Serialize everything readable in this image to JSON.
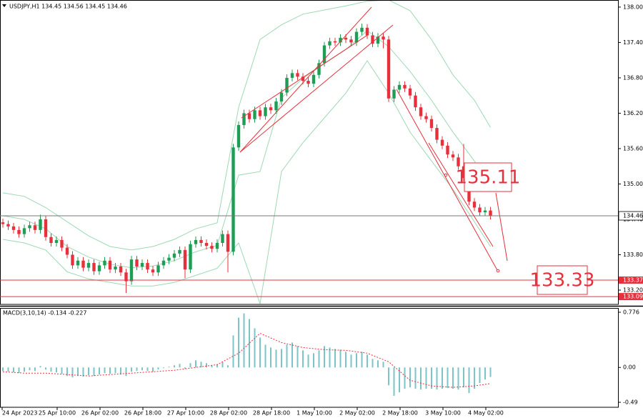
{
  "chart_data": {
    "type": "candlestick",
    "title": "USDJPY,H1 134.45 134.56 134.45 134.46",
    "open": [
      134.35,
      134.32,
      134.28,
      134.22,
      134.15,
      134.25,
      134.3,
      134.22,
      134.4,
      134.1,
      134.0,
      134.05,
      133.92,
      133.8,
      133.62,
      133.7,
      133.58,
      133.66,
      133.52,
      133.62,
      133.7,
      133.55,
      133.6,
      133.5,
      133.35,
      133.72,
      133.6,
      133.66,
      133.55,
      133.5,
      133.62,
      133.7,
      133.75,
      133.82,
      133.88,
      133.55,
      133.98,
      134.05,
      134.0,
      133.95,
      133.9,
      134.0,
      134.15,
      133.85,
      135.62,
      136.0,
      136.2,
      136.1,
      136.25,
      136.15,
      136.3,
      136.25,
      136.4,
      136.55,
      136.8,
      136.88,
      136.82,
      136.75,
      136.7,
      136.85,
      137.05,
      137.35,
      137.42,
      137.4,
      137.48,
      137.45,
      137.4,
      137.58,
      137.65,
      137.52,
      137.38,
      137.5,
      137.45,
      136.45,
      136.6,
      136.68,
      136.62,
      136.5,
      136.3,
      136.15,
      136.1,
      135.95,
      135.75,
      135.65,
      135.5,
      135.45,
      135.3,
      135.1,
      134.7,
      134.6,
      134.52,
      134.55
    ],
    "high": [
      134.41,
      134.38,
      134.34,
      134.28,
      134.31,
      134.36,
      134.36,
      134.48,
      134.46,
      134.16,
      134.11,
      134.11,
      133.98,
      133.86,
      133.76,
      133.76,
      133.72,
      133.72,
      133.68,
      133.76,
      133.76,
      133.66,
      133.66,
      133.56,
      133.78,
      133.78,
      133.72,
      133.72,
      133.61,
      133.68,
      133.76,
      133.81,
      133.88,
      133.94,
      133.94,
      134.04,
      134.11,
      134.11,
      134.06,
      134.01,
      134.06,
      134.21,
      134.21,
      135.68,
      136.06,
      136.26,
      136.26,
      136.31,
      136.31,
      136.36,
      136.36,
      136.46,
      136.61,
      136.86,
      136.94,
      136.94,
      136.88,
      136.81,
      136.91,
      137.11,
      137.41,
      137.48,
      137.48,
      137.54,
      137.54,
      137.51,
      137.64,
      137.72,
      137.71,
      137.58,
      137.56,
      137.56,
      137.51,
      136.66,
      136.74,
      136.74,
      136.68,
      136.56,
      136.36,
      136.21,
      136.16,
      136.01,
      135.81,
      135.71,
      135.56,
      135.51,
      135.68,
      135.16,
      134.76,
      134.66,
      134.61,
      134.61
    ],
    "low": [
      134.26,
      134.22,
      134.16,
      134.09,
      134.09,
      134.19,
      134.16,
      134.16,
      134.04,
      133.94,
      133.94,
      133.86,
      133.74,
      133.56,
      133.56,
      133.52,
      133.52,
      133.46,
      133.46,
      133.56,
      133.49,
      133.49,
      133.44,
      133.15,
      133.29,
      133.54,
      133.54,
      133.49,
      133.44,
      133.44,
      133.56,
      133.64,
      133.69,
      133.76,
      133.4,
      133.49,
      133.92,
      133.94,
      133.89,
      133.84,
      133.84,
      133.94,
      133.5,
      133.79,
      135.56,
      135.94,
      136.04,
      136.04,
      136.09,
      136.09,
      136.19,
      136.19,
      136.34,
      136.49,
      136.74,
      136.76,
      136.69,
      136.64,
      136.64,
      136.79,
      136.99,
      137.29,
      137.34,
      137.34,
      137.39,
      137.34,
      137.34,
      137.52,
      137.46,
      137.32,
      137.32,
      137.3,
      136.39,
      136.39,
      136.54,
      136.56,
      136.44,
      136.24,
      136.09,
      136.04,
      135.89,
      135.69,
      135.59,
      135.44,
      135.39,
      135.24,
      135.04,
      134.64,
      134.54,
      134.46,
      134.46,
      134.4
    ],
    "close": [
      134.32,
      134.28,
      134.22,
      134.15,
      134.25,
      134.3,
      134.22,
      134.4,
      134.1,
      134.0,
      134.05,
      133.92,
      133.8,
      133.62,
      133.7,
      133.58,
      133.66,
      133.52,
      133.62,
      133.7,
      133.55,
      133.6,
      133.5,
      133.35,
      133.72,
      133.6,
      133.66,
      133.55,
      133.5,
      133.62,
      133.7,
      133.75,
      133.82,
      133.88,
      133.55,
      133.98,
      134.05,
      134.0,
      133.95,
      133.9,
      134.0,
      134.15,
      133.85,
      135.62,
      136.0,
      136.2,
      136.1,
      136.25,
      136.15,
      136.3,
      136.25,
      136.4,
      136.55,
      136.8,
      136.88,
      136.82,
      136.75,
      136.7,
      136.85,
      137.05,
      137.35,
      137.42,
      137.4,
      137.48,
      137.45,
      137.4,
      137.58,
      137.65,
      137.52,
      137.38,
      137.5,
      137.45,
      136.45,
      136.6,
      136.68,
      136.62,
      136.5,
      136.3,
      136.15,
      136.1,
      135.95,
      135.75,
      135.65,
      135.5,
      135.45,
      135.3,
      135.1,
      134.7,
      134.6,
      134.52,
      134.55,
      134.46
    ],
    "colors": {
      "up": "#1f9d55",
      "down": "#e8303c"
    },
    "ylim": [
      132.97,
      138.12
    ],
    "yticks": [
      {
        "value": 138,
        "label": "138.00"
      },
      {
        "value": 137.4,
        "label": "137.40"
      },
      {
        "value": 136.8,
        "label": "136.80"
      },
      {
        "value": 136.2,
        "label": "136.20"
      },
      {
        "value": 135.6,
        "label": "135.60"
      },
      {
        "value": 135,
        "label": "135.00"
      },
      {
        "value": 134.4,
        "label": "134.40"
      },
      {
        "value": 133.8,
        "label": "133.80"
      },
      {
        "value": 133.2,
        "label": "133.20"
      }
    ],
    "x_labels": [
      "24 Apr 2023",
      "25 Apr 10:00",
      "26 Apr 02:00",
      "26 Apr 18:00",
      "27 Apr 10:00",
      "28 Apr 02:00",
      "28 Apr 18:00",
      "1 May 10:00",
      "2 May 02:00",
      "2 May 18:00",
      "3 May 10:00",
      "4 May 02:00"
    ],
    "bollinger": {
      "color": "#9ed8b4",
      "x": [
        0,
        4,
        8,
        12,
        16,
        20,
        24,
        28,
        32,
        36,
        40,
        44,
        48,
        52,
        56,
        60,
        64,
        68,
        72,
        76,
        80,
        84,
        88,
        91
      ],
      "upper": [
        134.85,
        134.79,
        134.6,
        134.36,
        134.12,
        133.94,
        133.88,
        133.94,
        134.06,
        134.24,
        134.34,
        136.3,
        137.45,
        137.7,
        137.88,
        137.95,
        138.02,
        138.1,
        138.12,
        137.94,
        137.45,
        136.85,
        136.42,
        135.96
      ],
      "middle": [
        134.46,
        134.4,
        134.24,
        133.94,
        133.76,
        133.64,
        133.58,
        133.61,
        133.7,
        133.85,
        133.96,
        135.15,
        135.21,
        136.46,
        136.79,
        137.04,
        137.28,
        137.6,
        137.33,
        136.91,
        136.42,
        135.88,
        135.39,
        134.95
      ],
      "lower": [
        134.06,
        134.0,
        133.88,
        133.51,
        133.39,
        133.33,
        133.27,
        133.27,
        133.33,
        133.45,
        133.57,
        134.0,
        132.97,
        135.21,
        135.7,
        136.12,
        136.54,
        137.09,
        136.54,
        135.88,
        135.39,
        134.91,
        134.36,
        133.94
      ]
    },
    "current_price": 134.46,
    "levels": [
      133.37,
      133.09
    ],
    "level_color": "#e8303c",
    "annotations": [
      "135.11",
      "133.33"
    ],
    "macd": {
      "title": "MACD(3,10,14) -0.134 -0.227",
      "histogram_color": "#7cc4c8",
      "signal_color": "#e8303c",
      "histogram": [
        -0.05,
        -0.06,
        -0.07,
        -0.08,
        -0.06,
        -0.04,
        -0.05,
        0.02,
        -0.03,
        -0.06,
        -0.07,
        -0.09,
        -0.12,
        -0.14,
        -0.12,
        -0.13,
        -0.11,
        -0.12,
        -0.1,
        -0.08,
        -0.09,
        -0.08,
        -0.1,
        -0.12,
        -0.06,
        -0.05,
        -0.04,
        -0.05,
        -0.06,
        -0.03,
        -0.01,
        0.01,
        0.03,
        0.05,
        -0.02,
        0.06,
        0.1,
        0.08,
        0.06,
        0.03,
        0.04,
        0.08,
        0.03,
        0.45,
        0.7,
        0.76,
        0.68,
        0.55,
        0.42,
        0.32,
        0.28,
        0.25,
        0.26,
        0.32,
        0.35,
        0.3,
        0.24,
        0.18,
        0.2,
        0.24,
        0.3,
        0.28,
        0.26,
        0.25,
        0.22,
        0.18,
        0.2,
        0.22,
        0.18,
        0.12,
        0.1,
        0.08,
        -0.25,
        -0.4,
        -0.35,
        -0.3,
        -0.28,
        -0.3,
        -0.31,
        -0.3,
        -0.3,
        -0.31,
        -0.3,
        -0.29,
        -0.3,
        -0.31,
        -0.28,
        -0.36,
        -0.3,
        -0.22,
        -0.17,
        -0.134
      ],
      "signal_x": [
        0,
        4,
        8,
        12,
        16,
        20,
        24,
        28,
        32,
        36,
        40,
        44,
        48,
        52,
        56,
        60,
        64,
        68,
        72,
        76,
        80,
        84,
        88,
        91
      ],
      "signal": [
        -0.06,
        -0.08,
        -0.08,
        -0.1,
        -0.12,
        -0.1,
        -0.08,
        -0.06,
        -0.04,
        0.0,
        0.04,
        0.2,
        0.48,
        0.35,
        0.28,
        0.25,
        0.24,
        0.2,
        0.08,
        -0.18,
        -0.26,
        -0.28,
        -0.26,
        -0.227
      ],
      "ylim": [
        -0.56,
        0.826
      ],
      "yticks": [
        0.776,
        {
          "value": 0,
          "label": "0.00"
        },
        -0.49
      ]
    }
  }
}
